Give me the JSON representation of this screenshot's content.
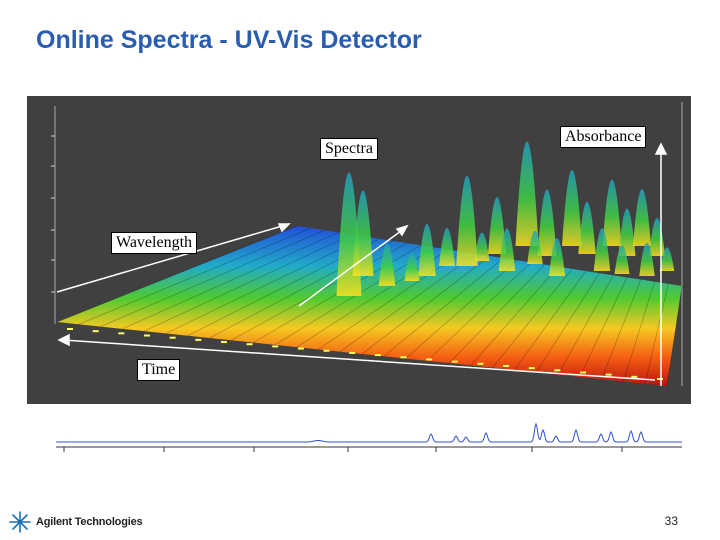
{
  "slide": {
    "title": "Online Spectra - UV-Vis Detector",
    "page_number": "33"
  },
  "labels": {
    "spectra": "Spectra",
    "absorbance": "Absorbance",
    "wavelength": "Wavelength",
    "time": "Time"
  },
  "logo": {
    "text": "Agilent Technologies",
    "icon": "agilent-spark-icon"
  },
  "colors": {
    "title": "#2a5db0",
    "plot_background": "#404040",
    "chromatogram": "#3050d0"
  }
}
